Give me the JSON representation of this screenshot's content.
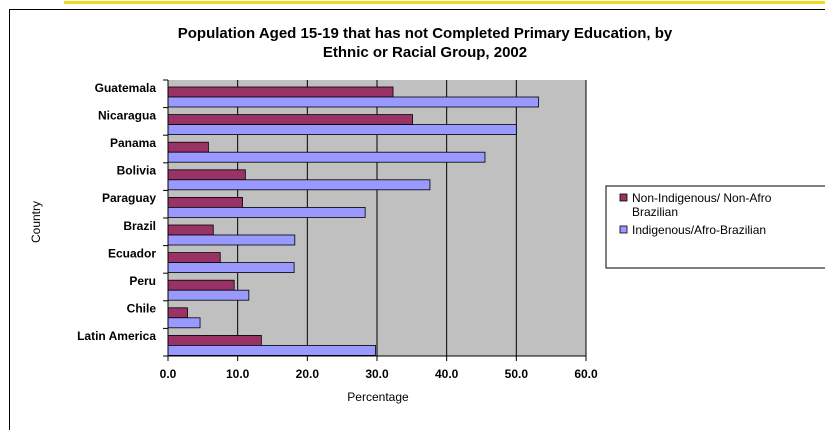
{
  "chart_data": {
    "type": "bar",
    "orientation": "horizontal",
    "title_line1": "Population Aged 15-19 that has not Completed Primary Education, by",
    "title_line2": "Ethnic or Racial Group, 2002",
    "xlabel": "Percentage",
    "ylabel": "Country",
    "xlim": [
      0,
      60
    ],
    "xticks": [
      "0.0",
      "10.0",
      "20.0",
      "30.0",
      "40.0",
      "50.0",
      "60.0"
    ],
    "grid": true,
    "legend_position": "right",
    "categories": [
      "Guatemala",
      "Nicaragua",
      "Panama",
      "Bolivia",
      "Paraguay",
      "Brazil",
      "Ecuador",
      "Peru",
      "Chile",
      "Latin America"
    ],
    "series": [
      {
        "name": "Non-Indigenous/ Non-Afro Brazilian",
        "legend_line1": "Non-Indigenous/ Non-Afro",
        "legend_line2": "Brazilian",
        "color": "#993366",
        "values": [
          32.3,
          35.1,
          5.8,
          11.1,
          10.7,
          6.5,
          7.5,
          9.5,
          2.8,
          13.4
        ]
      },
      {
        "name": "Indigenous/Afro-Brazilian",
        "color": "#9999ff",
        "values": [
          53.2,
          50.0,
          45.5,
          37.6,
          28.3,
          18.2,
          18.1,
          11.6,
          4.6,
          29.8
        ]
      }
    ]
  },
  "colors": {
    "plot_background": "#c0c0c0",
    "gridline": "#000000"
  }
}
